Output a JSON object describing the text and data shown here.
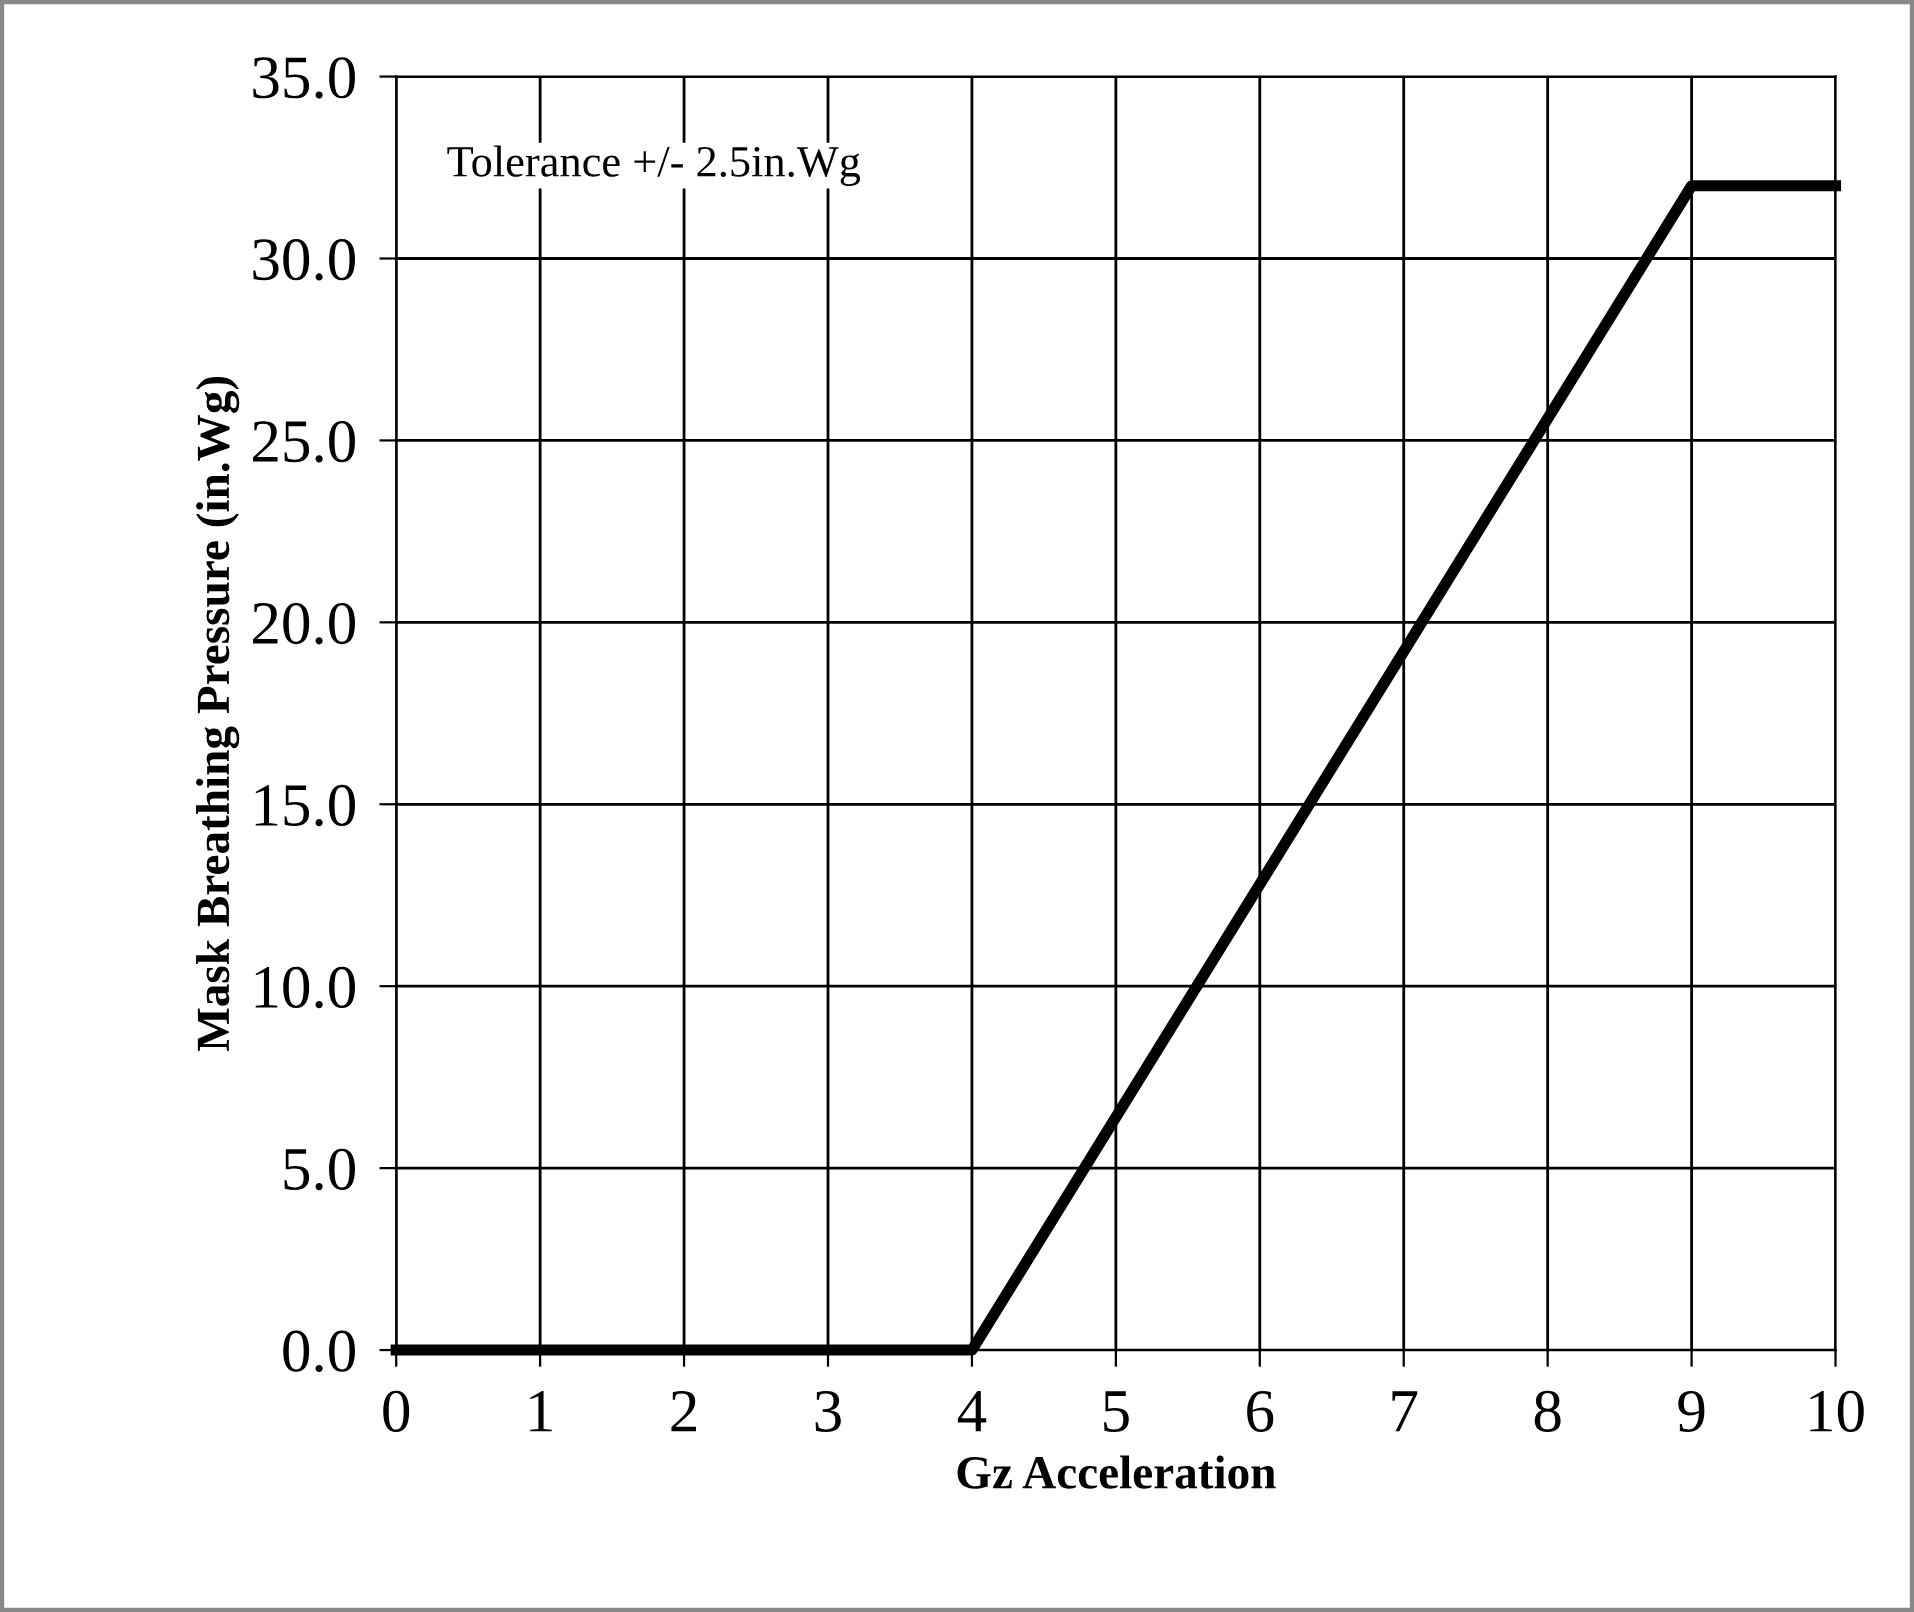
{
  "chart_data": {
    "type": "line",
    "xlabel": "Gz Acceleration",
    "ylabel": "Mask Breathing Pressure (in.Wg)",
    "x": [
      0,
      4,
      9,
      10
    ],
    "series": [
      {
        "color": "#000000",
        "values": [
          0,
          0,
          32,
          32
        ]
      }
    ],
    "xlim": [
      0,
      10
    ],
    "xticks": [
      0,
      1,
      2,
      3,
      4,
      5,
      6,
      7,
      8,
      9,
      10
    ],
    "ylim": [
      0,
      35
    ],
    "yticks": [
      {
        "value": 0,
        "label": "0.0"
      },
      {
        "value": 5,
        "label": "5.0"
      },
      {
        "value": 10,
        "label": "10.0"
      },
      {
        "value": 15,
        "label": "15.0"
      },
      {
        "value": 20,
        "label": "20.0"
      },
      {
        "value": 25,
        "label": "25.0"
      },
      {
        "value": 30,
        "label": "30.0"
      },
      {
        "value": 35,
        "label": "35.0"
      }
    ],
    "grid": true,
    "legend": false,
    "marker": "none",
    "line_style": "solid",
    "annotations": [
      "Tolerance +/- 2.5in.Wg"
    ]
  }
}
